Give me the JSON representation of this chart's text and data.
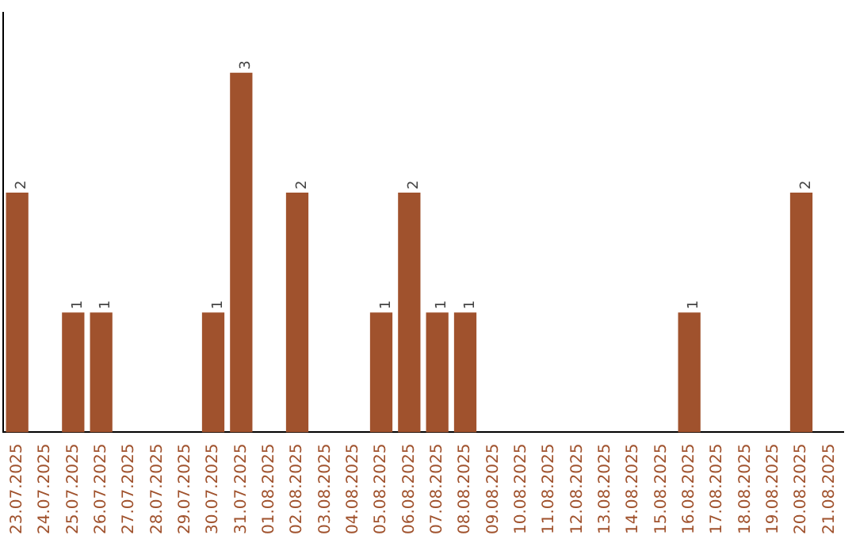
{
  "chart_data": {
    "type": "bar",
    "categories": [
      "23.07.2025",
      "24.07.2025",
      "25.07.2025",
      "26.07.2025",
      "27.07.2025",
      "28.07.2025",
      "29.07.2025",
      "30.07.2025",
      "31.07.2025",
      "01.08.2025",
      "02.08.2025",
      "03.08.2025",
      "04.08.2025",
      "05.08.2025",
      "06.08.2025",
      "07.08.2025",
      "08.08.2025",
      "09.08.2025",
      "10.08.2025",
      "11.08.2025",
      "12.08.2025",
      "13.08.2025",
      "14.08.2025",
      "15.08.2025",
      "16.08.2025",
      "17.08.2025",
      "18.08.2025",
      "19.08.2025",
      "20.08.2025",
      "21.08.2025"
    ],
    "values": [
      2,
      0,
      1,
      1,
      0,
      0,
      0,
      1,
      3,
      0,
      2,
      0,
      0,
      1,
      2,
      1,
      1,
      0,
      0,
      0,
      0,
      0,
      0,
      0,
      1,
      0,
      0,
      0,
      2,
      0
    ],
    "value_labels": [
      "2",
      null,
      "1",
      "1",
      null,
      null,
      null,
      "1",
      "3",
      null,
      "2",
      null,
      null,
      "1",
      "2",
      "1",
      "1",
      null,
      null,
      null,
      null,
      null,
      null,
      null,
      "1",
      null,
      null,
      null,
      "2",
      null
    ],
    "color": "#a0522d",
    "grid": false,
    "legend": false,
    "tick_labels": "x"
  }
}
